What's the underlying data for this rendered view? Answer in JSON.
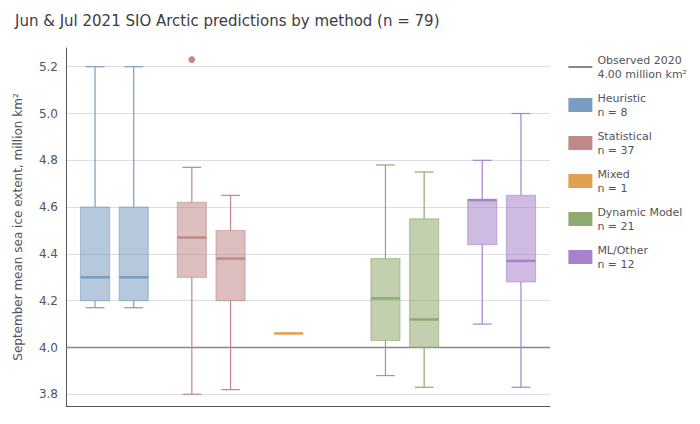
{
  "chart_data": {
    "type": "box",
    "title": "Jun & Jul 2021 SIO Arctic predictions by method (n = 79)",
    "ylabel": "September mean sea ice extent, million km²",
    "ylim": [
      3.75,
      5.28
    ],
    "yticks": [
      3.8,
      {
        "value": 4.0,
        "label": "4.0"
      },
      4.2,
      4.4,
      4.6,
      4.8,
      {
        "value": 5.0,
        "label": "5.0"
      },
      5.2
    ],
    "grid": true,
    "legend": "upper right",
    "tick_labels": "y",
    "series": [
      {
        "name": "Observed 2020\n4.00 million km²",
        "type": "hline",
        "color": "#888888",
        "values": [
          4.0
        ]
      },
      {
        "name": "Heuristic\nn = 8",
        "type": "box",
        "color": "#7a9cbf",
        "boxes": [
          {
            "q1": 4.2,
            "median": 4.3,
            "q3": 4.6,
            "whislo": 4.17,
            "whishi": 5.2
          },
          {
            "q1": 4.2,
            "median": 4.3,
            "q3": 4.6,
            "whislo": 4.17,
            "whishi": 5.2
          }
        ],
        "outliers": [
          [],
          []
        ]
      },
      {
        "name": "Statistical\nn = 37",
        "type": "box",
        "color": "#c08888",
        "boxes": [
          {
            "q1": 4.3,
            "median": 4.47,
            "q3": 4.62,
            "whislo": 3.8,
            "whishi": 4.77
          },
          {
            "q1": 4.2,
            "median": 4.38,
            "q3": 4.5,
            "whislo": 3.82,
            "whishi": 4.65
          }
        ],
        "outliers": [
          [
            5.23
          ],
          []
        ]
      },
      {
        "name": "Mixed\nn = 1",
        "type": "box",
        "color": "#e0a050",
        "boxes": [
          {
            "q1": 4.06,
            "median": 4.06,
            "q3": 4.06,
            "whislo": 4.06,
            "whishi": 4.06
          },
          null
        ],
        "outliers": [
          [],
          []
        ]
      },
      {
        "name": "Dynamic Model\nn = 21",
        "type": "box",
        "color": "#8faa70",
        "boxes": [
          {
            "q1": 4.03,
            "median": 4.21,
            "q3": 4.38,
            "whislo": 3.88,
            "whishi": 4.78
          },
          {
            "q1": 4.0,
            "median": 4.12,
            "q3": 4.55,
            "whislo": 3.83,
            "whishi": 4.75
          }
        ],
        "outliers": [
          [],
          []
        ]
      },
      {
        "name": "ML/Other\nn = 12",
        "type": "box",
        "color": "#a882c8",
        "boxes": [
          {
            "q1": 4.44,
            "median": 4.63,
            "q3": 4.63,
            "whislo": 4.1,
            "whishi": 4.8
          },
          {
            "q1": 4.28,
            "median": 4.37,
            "q3": 4.65,
            "whislo": 3.83,
            "whishi": 5.0
          }
        ],
        "outliers": [
          [],
          []
        ]
      }
    ]
  }
}
